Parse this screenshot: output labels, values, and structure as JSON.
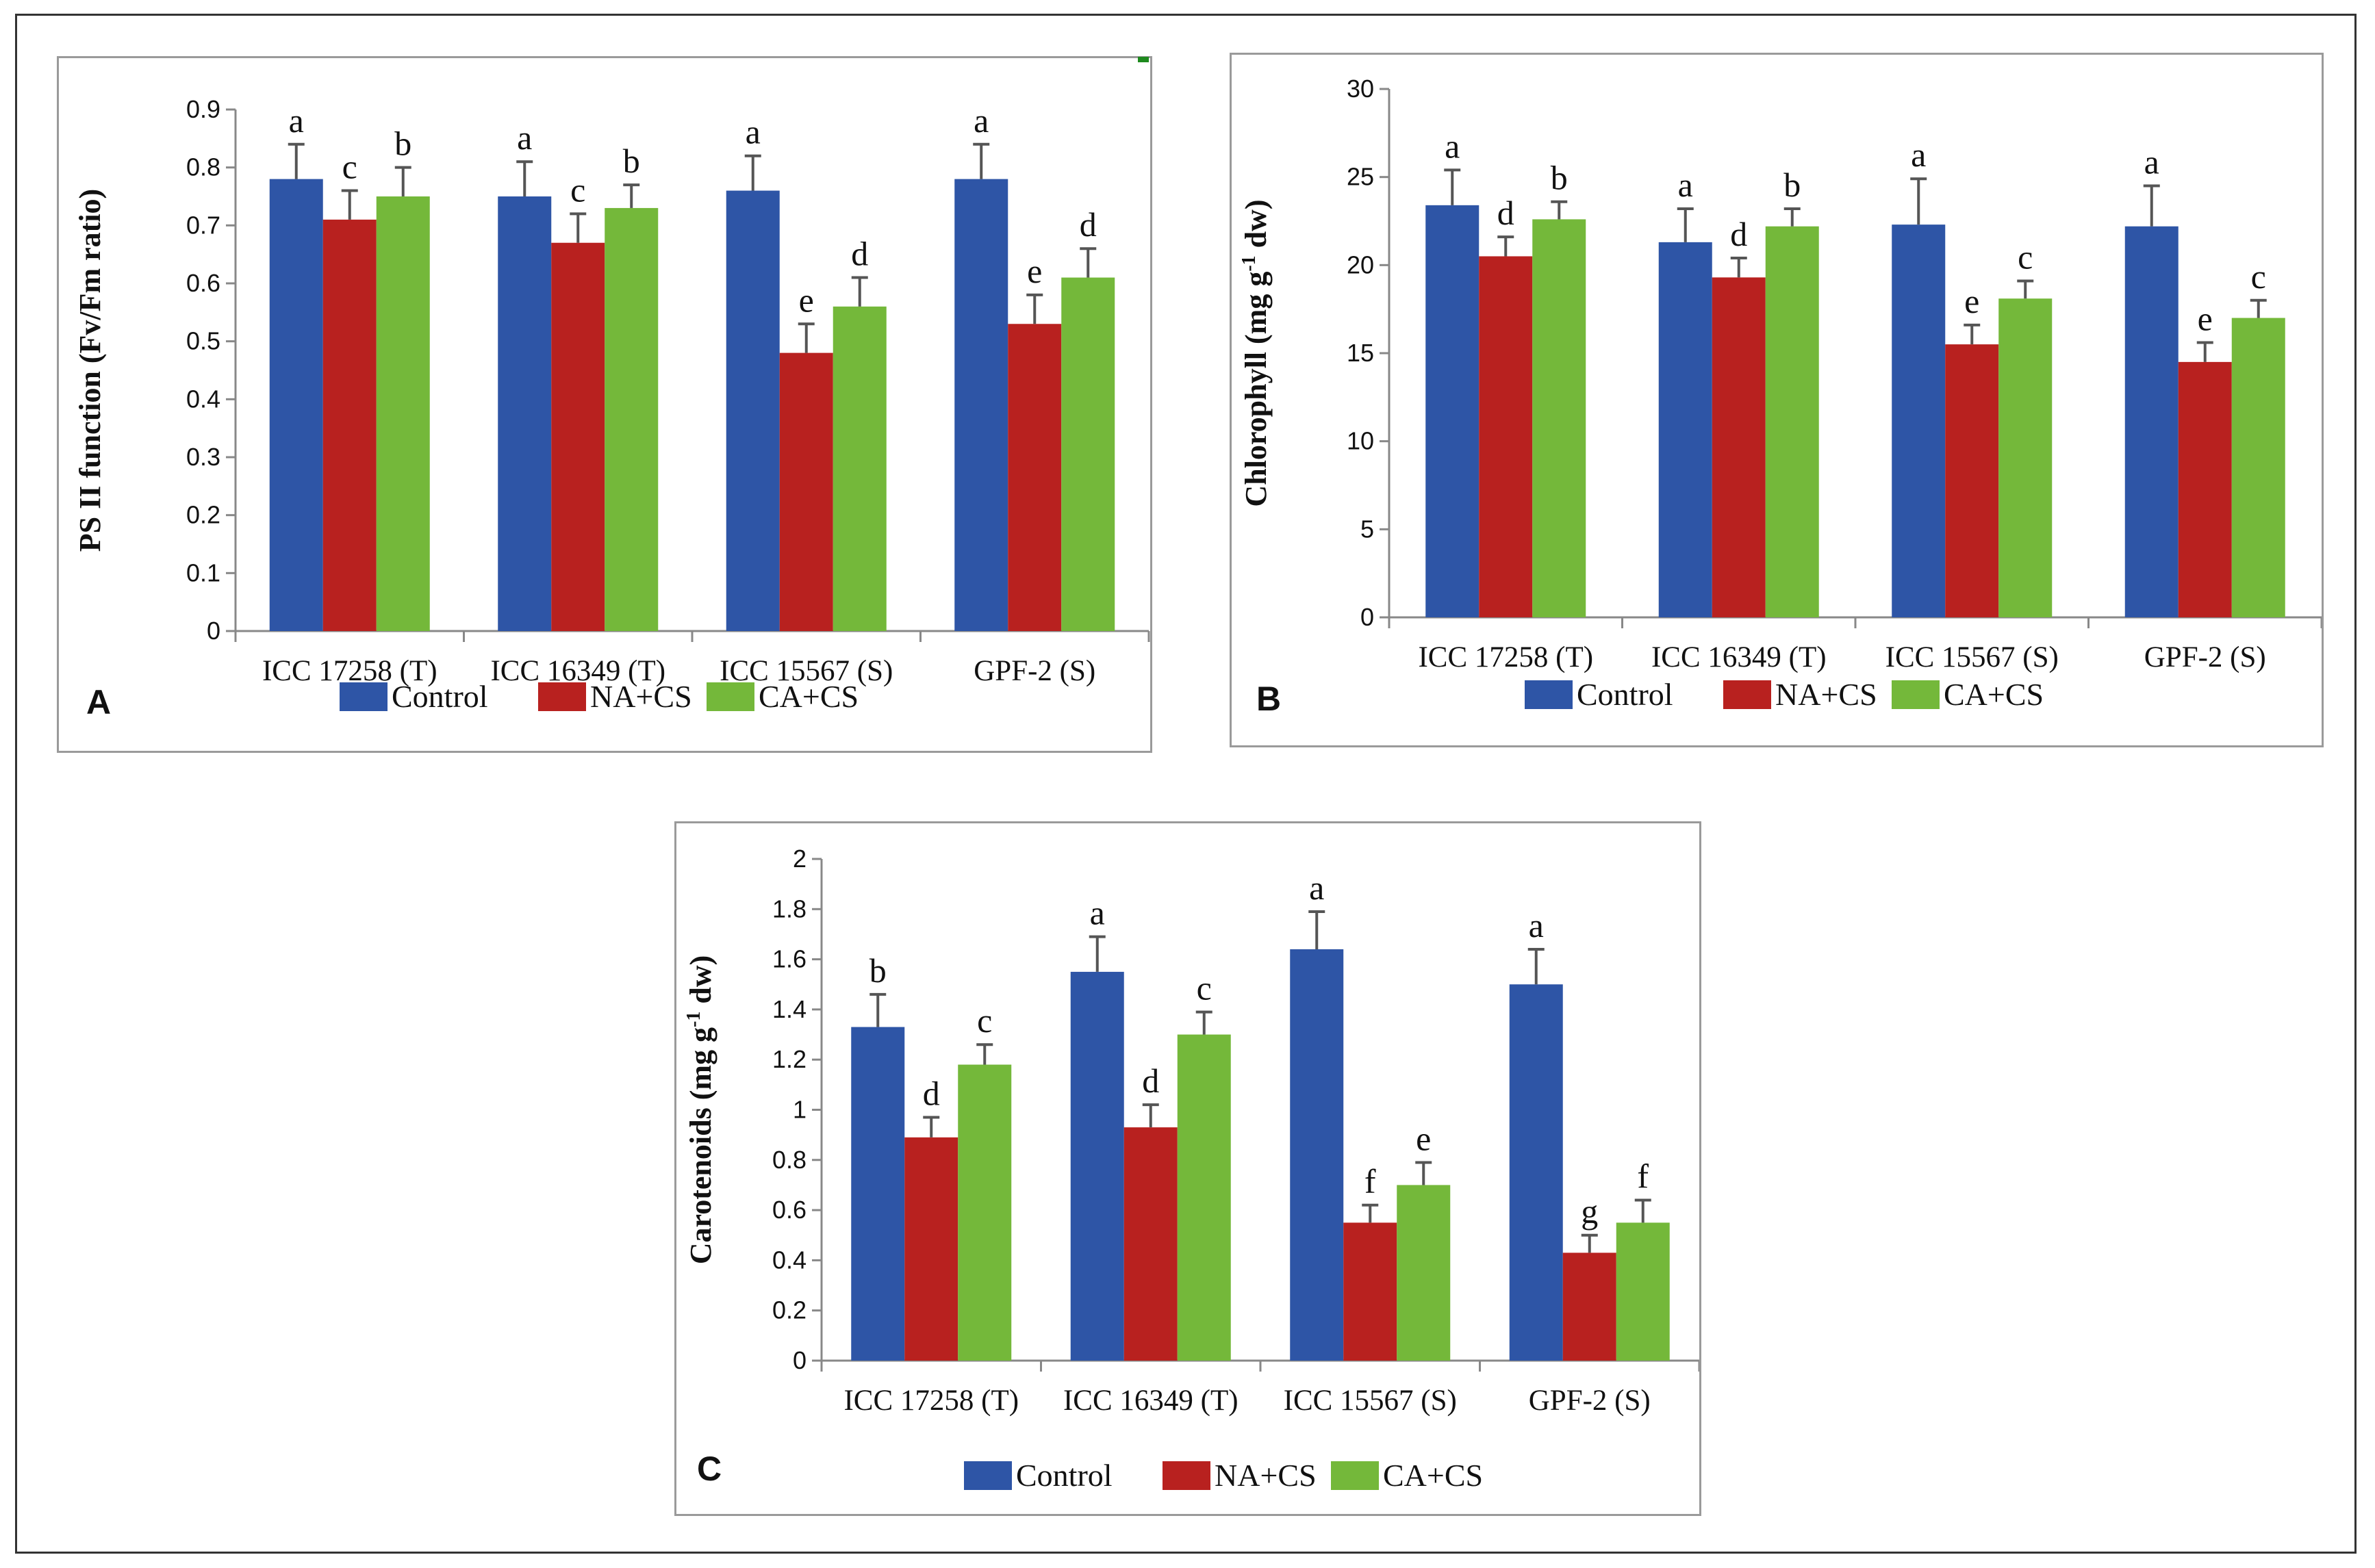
{
  "colors": {
    "Control": "#2e55a6",
    "NA+CS": "#b8211f",
    "CA+CS": "#74b83a"
  },
  "chart_data": [
    {
      "panel": "A",
      "type": "bar",
      "ylabel": "PS II function (Fv/Fm ratio)",
      "ylim": [
        0,
        0.9
      ],
      "yticks": [
        0,
        0.1,
        0.2,
        0.3,
        0.4,
        0.5,
        0.6,
        0.7,
        0.8,
        0.9
      ],
      "ytick_labels": [
        "0",
        "0.1",
        "0.2",
        "0.3",
        "0.4",
        "0.5",
        "0.6",
        "0.7",
        "0.8",
        "0.9"
      ],
      "categories": [
        "ICC 17258 (T)",
        "ICC 16349 (T)",
        "ICC 15567 (S)",
        "GPF-2 (S)"
      ],
      "legend": [
        "Control",
        "NA+CS",
        "CA+CS"
      ],
      "series": [
        {
          "name": "Control",
          "values": [
            0.78,
            0.75,
            0.76,
            0.78
          ],
          "errors": [
            0.06,
            0.06,
            0.06,
            0.06
          ],
          "letters": [
            "a",
            "a",
            "a",
            "a"
          ]
        },
        {
          "name": "NA+CS",
          "values": [
            0.71,
            0.67,
            0.48,
            0.53
          ],
          "errors": [
            0.05,
            0.05,
            0.05,
            0.05
          ],
          "letters": [
            "c",
            "c",
            "e",
            "e"
          ]
        },
        {
          "name": "CA+CS",
          "values": [
            0.75,
            0.73,
            0.56,
            0.61
          ],
          "errors": [
            0.05,
            0.04,
            0.05,
            0.05
          ],
          "letters": [
            "b",
            "b",
            "d",
            "d"
          ]
        }
      ]
    },
    {
      "panel": "B",
      "type": "bar",
      "ylabel": "Chlorophyll (mg g",
      "ylabel_sup": "-1",
      "ylabel_tail": " dw)",
      "ylim": [
        0,
        30
      ],
      "yticks": [
        0,
        5,
        10,
        15,
        20,
        25,
        30
      ],
      "ytick_labels": [
        "0",
        "5",
        "10",
        "15",
        "20",
        "25",
        "30"
      ],
      "categories": [
        "ICC 17258 (T)",
        "ICC 16349 (T)",
        "ICC 15567 (S)",
        "GPF-2 (S)"
      ],
      "legend": [
        "Control",
        "NA+CS",
        "CA+CS"
      ],
      "series": [
        {
          "name": "Control",
          "values": [
            23.4,
            21.3,
            22.3,
            22.2
          ],
          "errors": [
            2.0,
            1.9,
            2.6,
            2.3
          ],
          "letters": [
            "a",
            "a",
            "a",
            "a"
          ]
        },
        {
          "name": "NA+CS",
          "values": [
            20.5,
            19.3,
            15.5,
            14.5
          ],
          "errors": [
            1.1,
            1.1,
            1.1,
            1.1
          ],
          "letters": [
            "d",
            "d",
            "e",
            "e"
          ]
        },
        {
          "name": "CA+CS",
          "values": [
            22.6,
            22.2,
            18.1,
            17.0
          ],
          "errors": [
            1.0,
            1.0,
            1.0,
            1.0
          ],
          "letters": [
            "b",
            "b",
            "c",
            "c"
          ]
        }
      ]
    },
    {
      "panel": "C",
      "type": "bar",
      "ylabel": "Carotenoids (mg g",
      "ylabel_sup": "-1",
      "ylabel_tail": " dw)",
      "ylim": [
        0,
        2
      ],
      "yticks": [
        0,
        0.2,
        0.4,
        0.6,
        0.8,
        1,
        1.2,
        1.4,
        1.6,
        1.8,
        2
      ],
      "ytick_labels": [
        "0",
        "0.2",
        "0.4",
        "0.6",
        "0.8",
        "1",
        "1.2",
        "1.4",
        "1.6",
        "1.8",
        "2"
      ],
      "categories": [
        "ICC 17258 (T)",
        "ICC 16349 (T)",
        "ICC 15567 (S)",
        "GPF-2 (S)"
      ],
      "legend": [
        "Control",
        "NA+CS",
        "CA+CS"
      ],
      "series": [
        {
          "name": "Control",
          "values": [
            1.33,
            1.55,
            1.64,
            1.5
          ],
          "errors": [
            0.13,
            0.14,
            0.15,
            0.14
          ],
          "letters": [
            "b",
            "a",
            "a",
            "a"
          ]
        },
        {
          "name": "NA+CS",
          "values": [
            0.89,
            0.93,
            0.55,
            0.43
          ],
          "errors": [
            0.08,
            0.09,
            0.07,
            0.07
          ],
          "letters": [
            "d",
            "d",
            "f",
            "g"
          ]
        },
        {
          "name": "CA+CS",
          "values": [
            1.18,
            1.3,
            0.7,
            0.55
          ],
          "errors": [
            0.08,
            0.09,
            0.09,
            0.09
          ],
          "letters": [
            "c",
            "c",
            "e",
            "f"
          ]
        }
      ]
    }
  ]
}
